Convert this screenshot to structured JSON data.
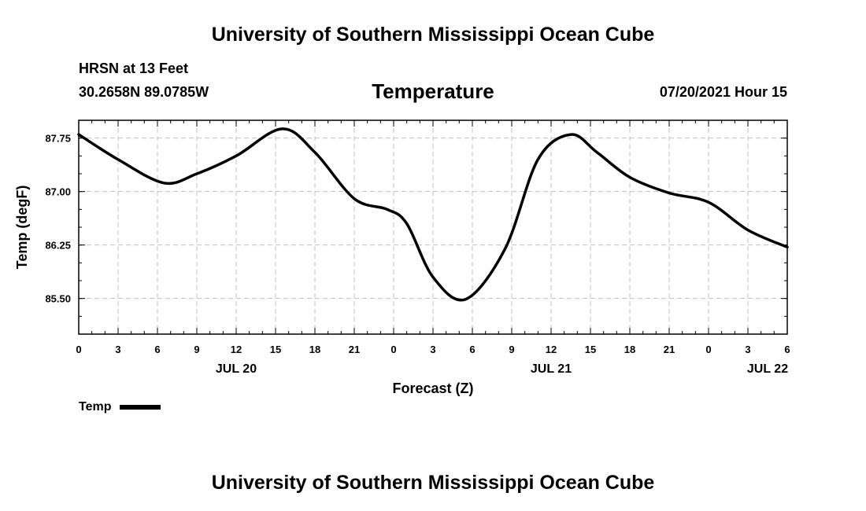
{
  "header": {
    "title_top": "University of Southern Mississippi Ocean Cube",
    "station": "HRSN at 13 Feet",
    "coords": "30.2658N  89.0785W",
    "chart_title": "Temperature",
    "timestamp": "07/20/2021 Hour 15",
    "title_bottom": "University of Southern Mississippi Ocean Cube"
  },
  "legend": {
    "label": "Temp"
  },
  "colors": {
    "line": "#000000",
    "grid": "#c0c0c0"
  },
  "chart_data": {
    "type": "line",
    "title": "Temperature",
    "xlabel": "Forecast (Z)",
    "ylabel": "Temp (degF)",
    "xlim": [
      0,
      54
    ],
    "ylim": [
      85.0,
      88.0
    ],
    "grid": true,
    "legend_position": "bottom-left",
    "x_ticks": [
      0,
      3,
      6,
      9,
      12,
      15,
      18,
      21,
      24,
      27,
      30,
      33,
      36,
      39,
      42,
      45,
      48,
      51,
      54
    ],
    "x_tick_labels": [
      "0",
      "3",
      "6",
      "9",
      "12",
      "15",
      "18",
      "21",
      "0",
      "3",
      "6",
      "9",
      "12",
      "15",
      "18",
      "21",
      "0",
      "3",
      "6"
    ],
    "date_labels": [
      {
        "x": 12,
        "label": "JUL 20"
      },
      {
        "x": 36,
        "label": "JUL 21"
      },
      {
        "x": 52.5,
        "label": "JUL 22"
      }
    ],
    "y_ticks": [
      85.5,
      86.25,
      87.0,
      87.75
    ],
    "y_tick_labels": [
      "85.50",
      "86.25",
      "87.00",
      "87.75"
    ],
    "series": [
      {
        "name": "Temp",
        "x": [
          0,
          3,
          6.5,
          9,
          12,
          15.5,
          18,
          21,
          23.5,
          25,
          27,
          29.5,
          32.5,
          35,
          37.5,
          39.5,
          42,
          45,
          48,
          51,
          54
        ],
        "y": [
          87.8,
          87.45,
          87.12,
          87.25,
          87.5,
          87.88,
          87.55,
          86.9,
          86.75,
          86.55,
          85.8,
          85.49,
          86.2,
          87.45,
          87.8,
          87.55,
          87.2,
          86.98,
          86.85,
          86.46,
          86.22
        ]
      }
    ]
  }
}
